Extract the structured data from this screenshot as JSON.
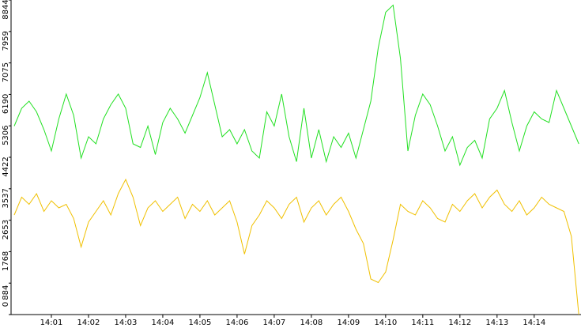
{
  "chart_data": {
    "type": "line",
    "x": [
      0,
      0.2,
      0.4,
      0.6,
      0.8,
      1,
      1.2,
      1.4,
      1.6,
      1.8,
      2,
      2.2,
      2.4,
      2.6,
      2.8,
      3,
      3.2,
      3.4,
      3.6,
      3.8,
      4,
      4.2,
      4.4,
      4.6,
      4.8,
      5,
      5.2,
      5.4,
      5.6,
      5.8,
      6,
      6.2,
      6.4,
      6.6,
      6.8,
      7,
      7.2,
      7.4,
      7.6,
      7.8,
      8,
      8.2,
      8.4,
      8.6,
      8.8,
      9,
      9.2,
      9.4,
      9.6,
      9.8,
      10,
      10.2,
      10.4,
      10.6,
      10.8,
      11,
      11.2,
      11.4,
      11.6,
      11.8,
      12,
      12.2,
      12.4,
      12.6,
      12.8,
      13,
      13.2,
      13.4,
      13.6,
      13.8,
      14,
      14.2,
      14.4,
      14.6,
      14.8,
      15,
      15.2
    ],
    "series": [
      {
        "color": "#22e022",
        "values": [
          5300,
          5800,
          6000,
          5700,
          5200,
          4600,
          5500,
          6200,
          5600,
          4400,
          5000,
          4800,
          5500,
          5900,
          6200,
          5800,
          4800,
          4700,
          5300,
          4500,
          5400,
          5800,
          5500,
          5100,
          5600,
          6100,
          6800,
          5900,
          5000,
          5200,
          4800,
          5200,
          4600,
          4400,
          5700,
          5300,
          6200,
          5000,
          4300,
          5800,
          4400,
          5200,
          4300,
          5000,
          4700,
          5100,
          4400,
          5200,
          6000,
          7500,
          8500,
          8700,
          7200,
          4600,
          5600,
          6200,
          5900,
          5300,
          4600,
          5000,
          4200,
          4700,
          4900,
          4400,
          5500,
          5800,
          6300,
          5400,
          4600,
          5300,
          5700,
          5500,
          5400,
          6300,
          5800,
          5300,
          4800
        ]
      },
      {
        "color": "#f0c000",
        "values": [
          2800,
          3300,
          3100,
          3400,
          2900,
          3200,
          3000,
          3100,
          2700,
          1900,
          2600,
          2900,
          3200,
          2800,
          3400,
          3800,
          3300,
          2500,
          3000,
          3200,
          2900,
          3100,
          3300,
          2700,
          3100,
          2900,
          3200,
          2800,
          3000,
          3200,
          2600,
          1700,
          2500,
          2800,
          3200,
          3000,
          2700,
          3100,
          3300,
          2600,
          3000,
          3200,
          2800,
          3100,
          3300,
          2900,
          2400,
          2000,
          1000,
          900,
          1200,
          2100,
          3100,
          2900,
          2800,
          3200,
          3000,
          2700,
          2600,
          3100,
          2900,
          3200,
          3400,
          3000,
          3300,
          3500,
          3100,
          2900,
          3200,
          2800,
          3000,
          3300,
          3100,
          3000,
          2900,
          2200,
          0
        ]
      }
    ],
    "xlim": [
      -0.085,
      15.26
    ],
    "xticks": [
      {
        "value": 1,
        "label": "14:01"
      },
      {
        "value": 2,
        "label": "14:02"
      },
      {
        "value": 3,
        "label": "14:03"
      },
      {
        "value": 4,
        "label": "14:04"
      },
      {
        "value": 5,
        "label": "14:05"
      },
      {
        "value": 6,
        "label": "14:06"
      },
      {
        "value": 7,
        "label": "14:07"
      },
      {
        "value": 8,
        "label": "14:08"
      },
      {
        "value": 9,
        "label": "14:09"
      },
      {
        "value": 10,
        "label": "14:10"
      },
      {
        "value": 11,
        "label": "14:11"
      },
      {
        "value": 12,
        "label": "14:12"
      },
      {
        "value": 13,
        "label": "14:13"
      },
      {
        "value": 14,
        "label": "14:14"
      }
    ],
    "ylim": [
      0,
      8844
    ],
    "yticks": [
      0,
      884,
      1768,
      2653,
      3537,
      4422,
      5306,
      6190,
      7075,
      7959,
      8844
    ]
  }
}
